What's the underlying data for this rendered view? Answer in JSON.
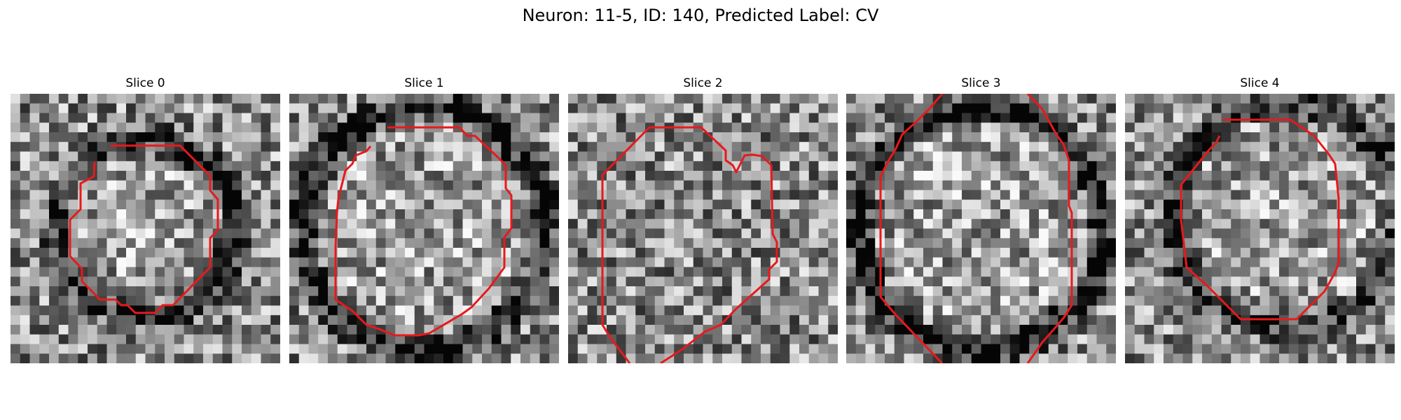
{
  "figure": {
    "title": "Neuron: 11-5, ID: 140, Predicted Label: CV",
    "panels": [
      {
        "label": "Slice 0",
        "dark": "ring"
      },
      {
        "label": "Slice 1",
        "dark": "ring"
      },
      {
        "label": "Slice 2",
        "dark": "sparse"
      },
      {
        "label": "Slice 3",
        "dark": "ring"
      },
      {
        "label": "Slice 4",
        "dark": "ring-right"
      }
    ],
    "colormap": "gray",
    "contour_color": "#e8191c"
  }
}
